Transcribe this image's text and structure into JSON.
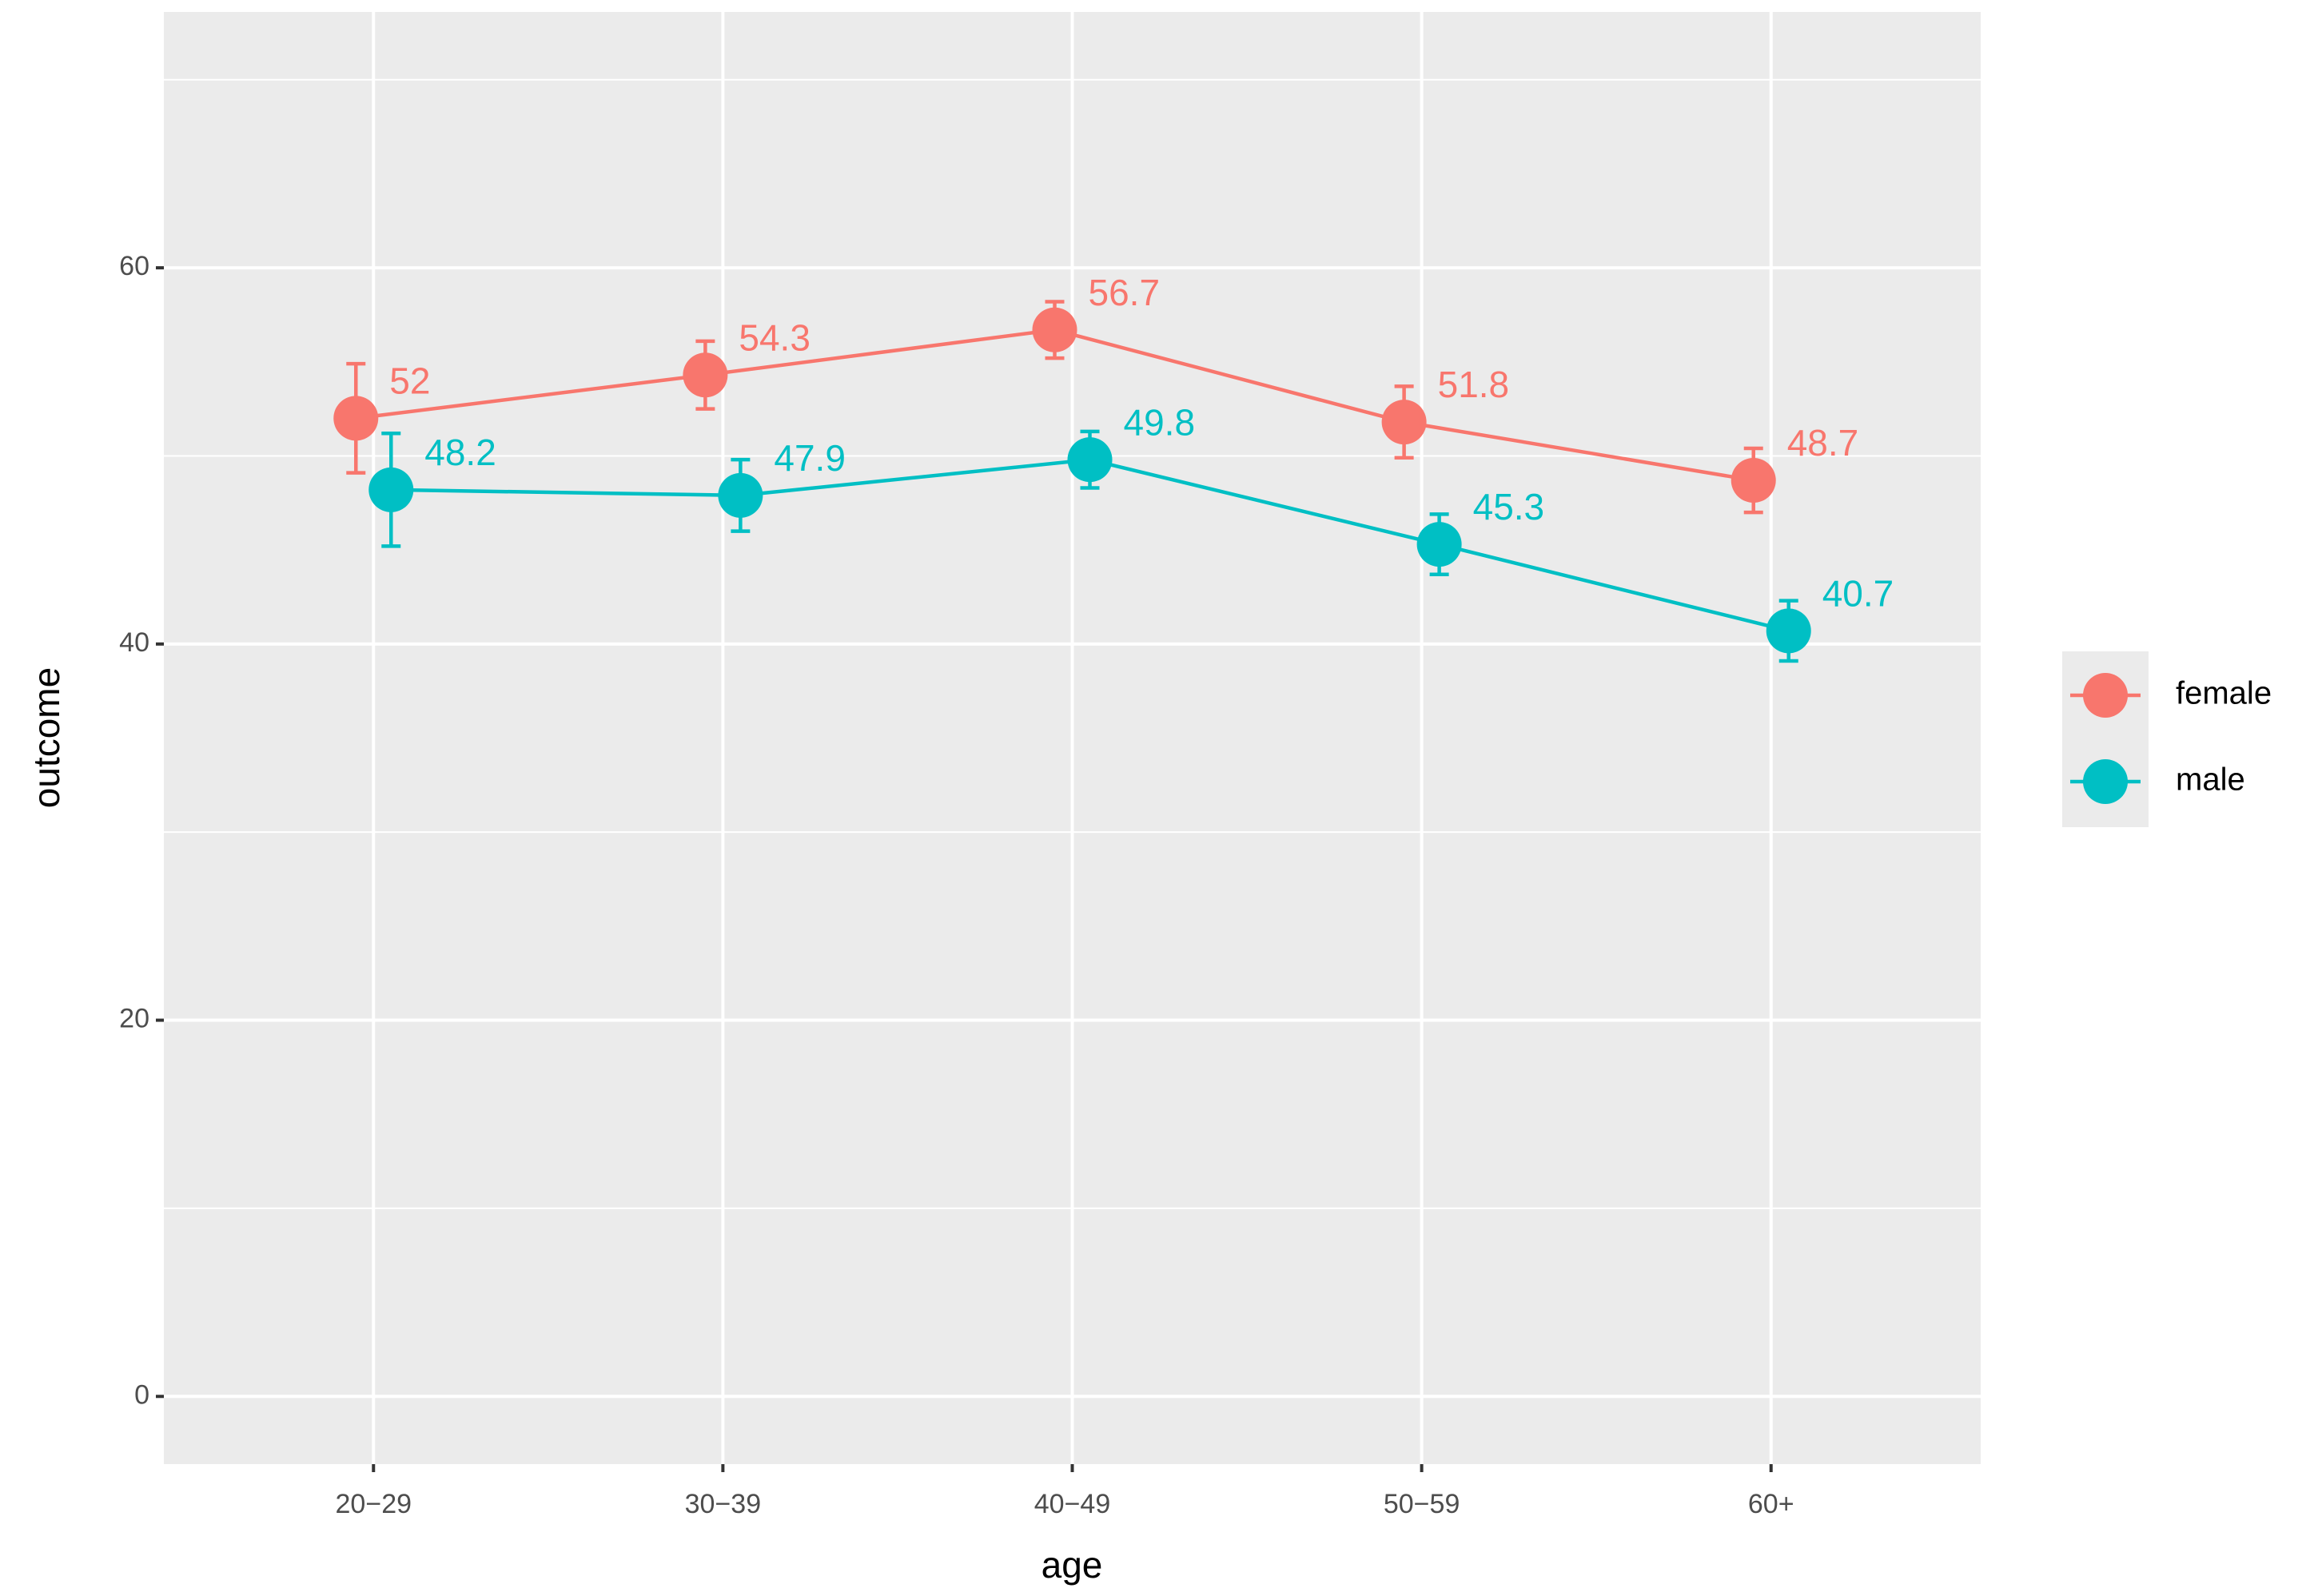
{
  "chart_data": {
    "type": "line",
    "x_label": "age",
    "y_label": "outcome",
    "categories": [
      "20−29",
      "30−39",
      "40−49",
      "50−59",
      "60+"
    ],
    "series": [
      {
        "name": "female",
        "color": "#F8766D",
        "values": [
          52,
          54.3,
          56.7,
          51.8,
          48.7
        ],
        "errors": [
          2.9,
          1.8,
          1.5,
          1.9,
          1.7
        ]
      },
      {
        "name": "male",
        "color": "#00BFC4",
        "values": [
          48.2,
          47.9,
          49.8,
          45.3,
          40.7
        ],
        "errors": [
          3.0,
          1.9,
          1.5,
          1.6,
          1.6
        ]
      }
    ],
    "ylim": [
      -3.6,
      73.6
    ],
    "yticks": [
      0,
      20,
      40,
      60
    ],
    "minor_yticks": [
      10,
      30,
      50,
      70
    ],
    "grid": true,
    "legend": "right"
  }
}
